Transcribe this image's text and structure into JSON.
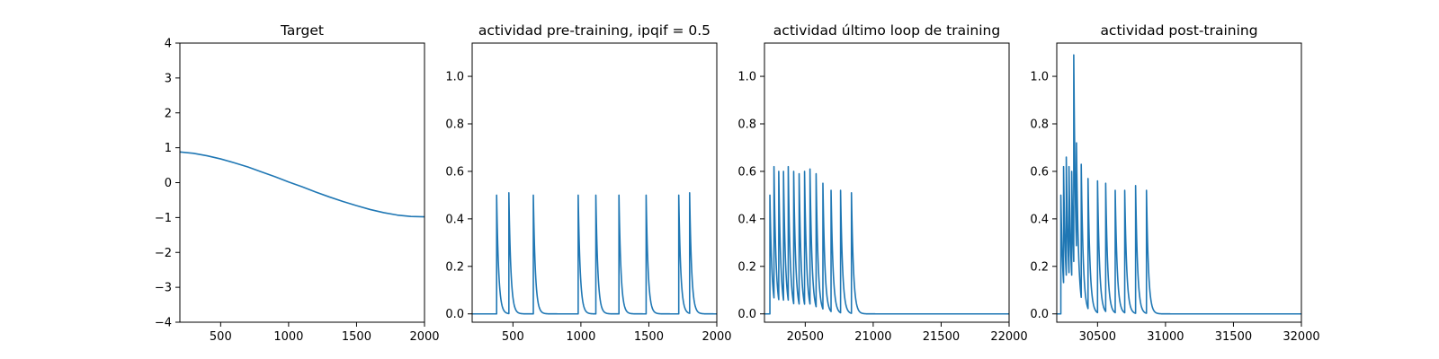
{
  "chart_data": [
    {
      "type": "line",
      "title": "Target",
      "xlim": [
        200,
        2000
      ],
      "ylim": [
        -4,
        4
      ],
      "x_ticks": [
        500,
        1000,
        1500,
        2000
      ],
      "y_ticks": [
        -4,
        -3,
        -2,
        -1,
        0,
        1,
        2,
        3,
        4
      ],
      "x_tick_labels": [
        "500",
        "1000",
        "1500",
        "2000"
      ],
      "y_tick_labels": [
        "−4",
        "−3",
        "−2",
        "−1",
        "0",
        "1",
        "2",
        "3",
        "4"
      ],
      "grid": false,
      "color": "#1f77b4",
      "series": [
        {
          "x": [
            200,
            300,
            400,
            500,
            600,
            700,
            800,
            900,
            1000,
            1100,
            1200,
            1300,
            1400,
            1500,
            1600,
            1700,
            1800,
            1900,
            2000
          ],
          "values": [
            0.88,
            0.84,
            0.77,
            0.68,
            0.57,
            0.45,
            0.31,
            0.17,
            0.02,
            -0.12,
            -0.27,
            -0.41,
            -0.54,
            -0.66,
            -0.77,
            -0.86,
            -0.93,
            -0.97,
            -0.98
          ]
        }
      ]
    },
    {
      "type": "line",
      "title": "actividad pre-training, ipqif = 0.5",
      "xlim": [
        200,
        2000
      ],
      "ylim": [
        -0.035,
        1.14
      ],
      "x_ticks": [
        500,
        1000,
        1500,
        2000
      ],
      "y_ticks": [
        0.0,
        0.2,
        0.4,
        0.6,
        0.8,
        1.0
      ],
      "x_tick_labels": [
        "500",
        "1000",
        "1500",
        "2000"
      ],
      "y_tick_labels": [
        "0.0",
        "0.2",
        "0.4",
        "0.6",
        "0.8",
        "1.0"
      ],
      "grid": false,
      "color": "#1f77b4",
      "baseline": 0.0,
      "decay_tau": 15,
      "spikes": [
        {
          "x": 380,
          "value": 0.5
        },
        {
          "x": 470,
          "value": 0.51
        },
        {
          "x": 650,
          "value": 0.5
        },
        {
          "x": 980,
          "value": 0.5
        },
        {
          "x": 1110,
          "value": 0.5
        },
        {
          "x": 1280,
          "value": 0.5
        },
        {
          "x": 1480,
          "value": 0.5
        },
        {
          "x": 1720,
          "value": 0.5
        },
        {
          "x": 1800,
          "value": 0.51
        }
      ]
    },
    {
      "type": "line",
      "title": "actividad último loop de training",
      "xlim": [
        20200,
        22000
      ],
      "ylim": [
        -0.035,
        1.14
      ],
      "x_ticks": [
        20500,
        21000,
        21500,
        22000
      ],
      "y_ticks": [
        0.0,
        0.2,
        0.4,
        0.6,
        0.8,
        1.0
      ],
      "x_tick_labels": [
        "20500",
        "21000",
        "21500",
        "22000"
      ],
      "y_tick_labels": [
        "0.0",
        "0.2",
        "0.4",
        "0.6",
        "0.8",
        "1.0"
      ],
      "grid": false,
      "color": "#1f77b4",
      "baseline": 0.0,
      "decay_tau": 15,
      "spikes": [
        {
          "x": 20240,
          "value": 0.5
        },
        {
          "x": 20270,
          "value": 0.62
        },
        {
          "x": 20305,
          "value": 0.6
        },
        {
          "x": 20340,
          "value": 0.6
        },
        {
          "x": 20375,
          "value": 0.62
        },
        {
          "x": 20415,
          "value": 0.6
        },
        {
          "x": 20455,
          "value": 0.59
        },
        {
          "x": 20495,
          "value": 0.6
        },
        {
          "x": 20535,
          "value": 0.61
        },
        {
          "x": 20580,
          "value": 0.59
        },
        {
          "x": 20630,
          "value": 0.55
        },
        {
          "x": 20690,
          "value": 0.52
        },
        {
          "x": 20760,
          "value": 0.52
        },
        {
          "x": 20840,
          "value": 0.51
        }
      ]
    },
    {
      "type": "line",
      "title": "actividad post-training",
      "xlim": [
        30200,
        32000
      ],
      "ylim": [
        -0.035,
        1.14
      ],
      "x_ticks": [
        30500,
        31000,
        31500,
        32000
      ],
      "y_ticks": [
        0.0,
        0.2,
        0.4,
        0.6,
        0.8,
        1.0
      ],
      "x_tick_labels": [
        "30500",
        "31000",
        "31500",
        "32000"
      ],
      "y_tick_labels": [
        "0.0",
        "0.2",
        "0.4",
        "0.6",
        "0.8",
        "1.0"
      ],
      "grid": false,
      "color": "#1f77b4",
      "baseline": 0.0,
      "decay_tau": 15,
      "spikes": [
        {
          "x": 30230,
          "value": 0.5
        },
        {
          "x": 30250,
          "value": 0.62
        },
        {
          "x": 30270,
          "value": 0.66
        },
        {
          "x": 30290,
          "value": 0.62
        },
        {
          "x": 30310,
          "value": 0.6
        },
        {
          "x": 30325,
          "value": 1.09
        },
        {
          "x": 30345,
          "value": 0.72
        },
        {
          "x": 30380,
          "value": 0.63
        },
        {
          "x": 30430,
          "value": 0.57
        },
        {
          "x": 30500,
          "value": 0.56
        },
        {
          "x": 30560,
          "value": 0.55
        },
        {
          "x": 30630,
          "value": 0.52
        },
        {
          "x": 30700,
          "value": 0.52
        },
        {
          "x": 30780,
          "value": 0.54
        },
        {
          "x": 30860,
          "value": 0.52
        }
      ]
    }
  ]
}
